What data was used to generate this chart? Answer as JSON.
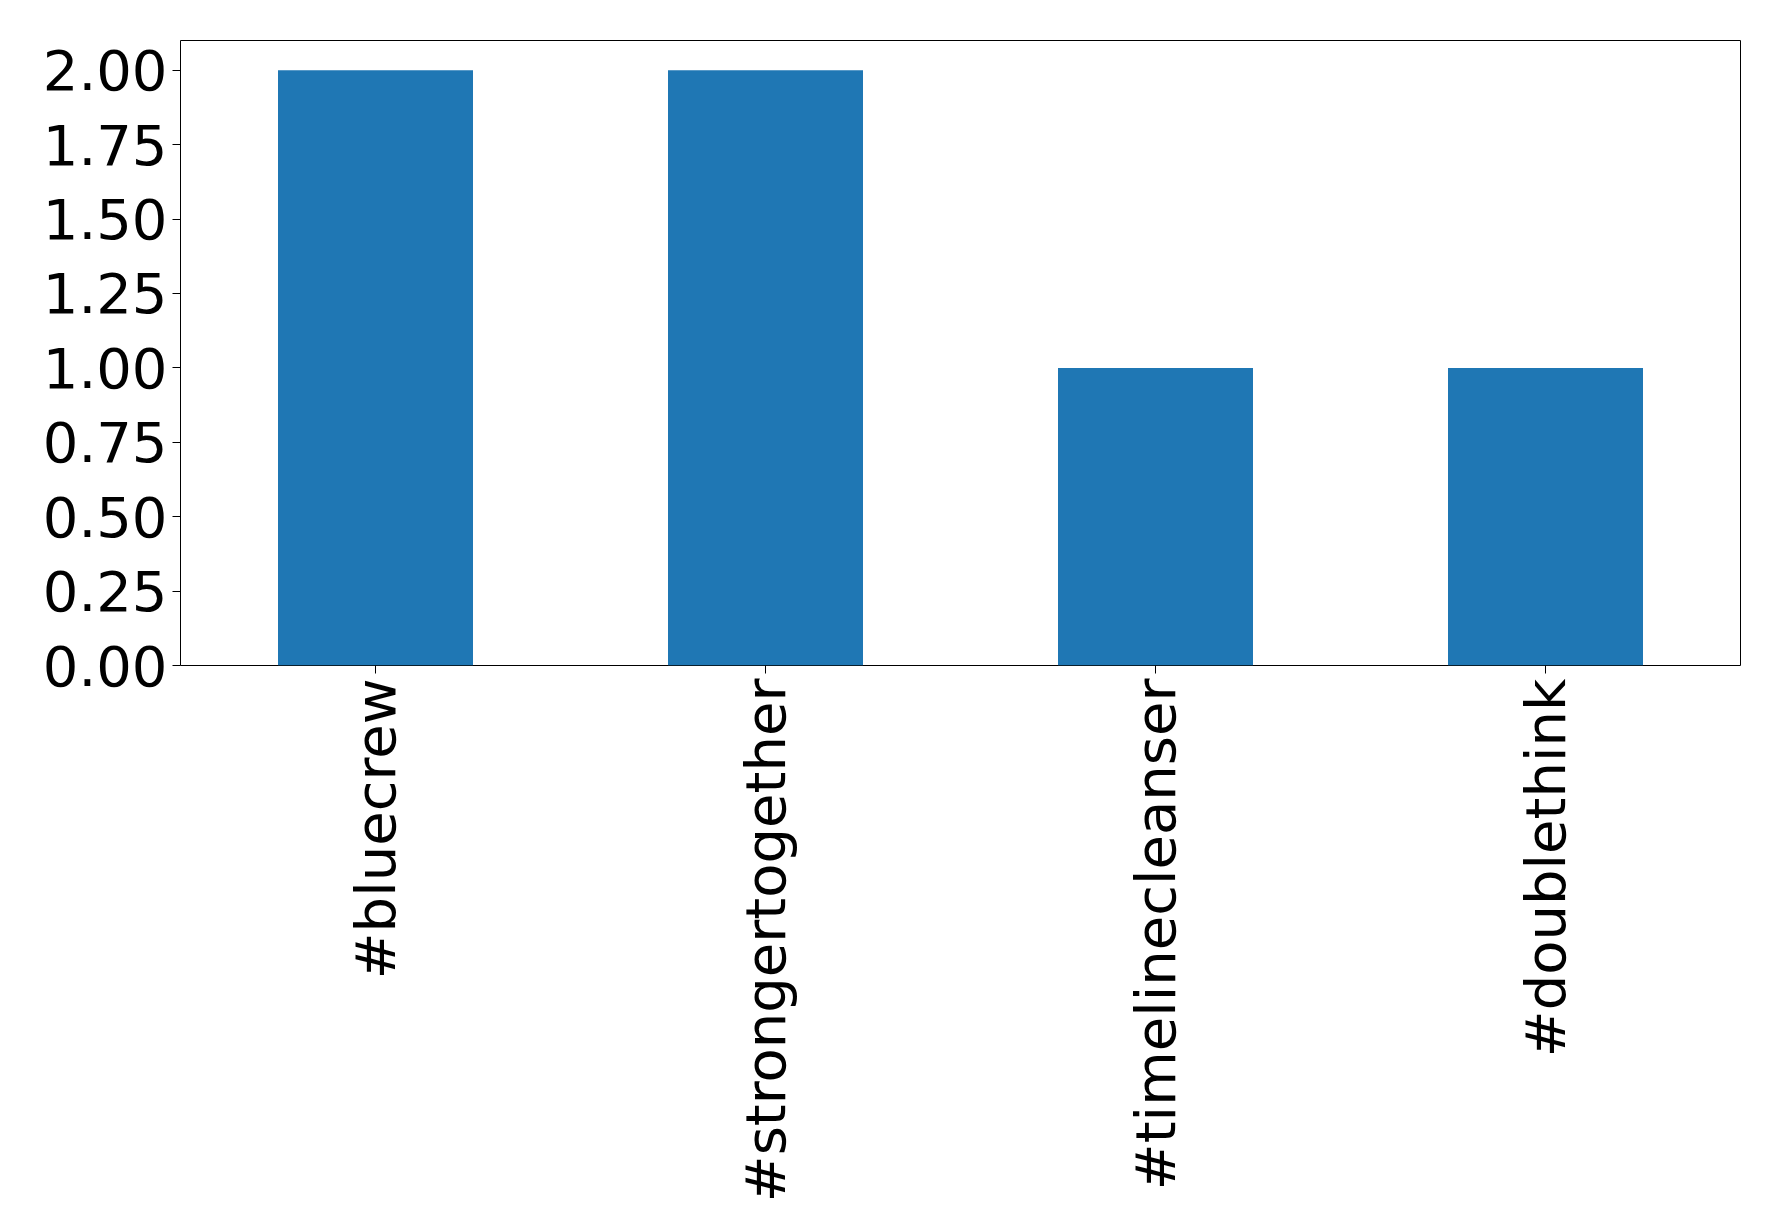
{
  "chart_data": {
    "type": "bar",
    "categories": [
      "#bluecrew",
      "#strongertogether",
      "#timelinecleanser",
      "#doublethink"
    ],
    "values": [
      2,
      2,
      1,
      1
    ],
    "color": "#1f77b4",
    "ylim": [
      0,
      2.1
    ],
    "yticks": [
      {
        "value": 0,
        "label": "0.00"
      },
      {
        "value": 0.25,
        "label": "0.25"
      },
      {
        "value": 0.5,
        "label": "0.50"
      },
      {
        "value": 0.75,
        "label": "0.75"
      },
      {
        "value": 1,
        "label": "1.00"
      },
      {
        "value": 1.25,
        "label": "1.25"
      },
      {
        "value": 1.5,
        "label": "1.50"
      },
      {
        "value": 1.75,
        "label": "1.75"
      },
      {
        "value": 2,
        "label": "2.00"
      }
    ],
    "grid": false
  }
}
